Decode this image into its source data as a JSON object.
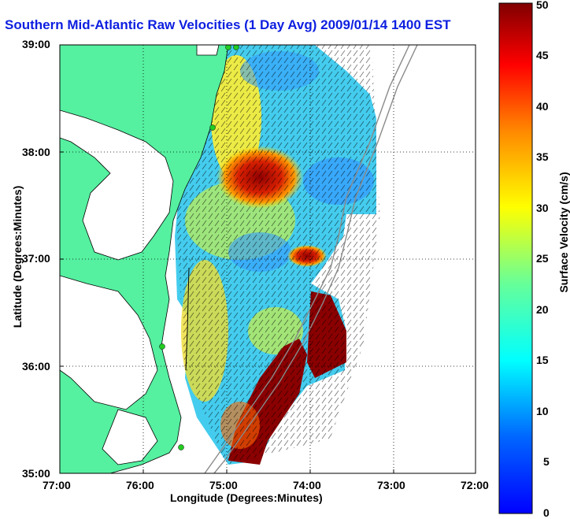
{
  "title": "Southern Mid-Atlantic Raw Velocities (1 Day Avg) 2009/01/14 1400 EST",
  "xlabel": "Longitude (Degrees:Minutes)",
  "ylabel": "Latitude (Degrees:Minutes)",
  "colorbar": {
    "label": "Surface Velocity (cm/s)",
    "ticks": [
      "50",
      "45",
      "40",
      "35",
      "30",
      "25",
      "20",
      "15",
      "10",
      "5",
      "0"
    ],
    "range": [
      0,
      50
    ],
    "colormap": "jet"
  },
  "axes": {
    "x_ticks": [
      "77:00",
      "76:00",
      "75:00",
      "74:00",
      "73:00",
      "72:00"
    ],
    "y_ticks": [
      "39:00",
      "38:00",
      "37:00",
      "36:00",
      "35:00"
    ],
    "lon_range": [
      -77,
      -72
    ],
    "lat_range": [
      35,
      39
    ],
    "grid": "dotted"
  },
  "colors": {
    "land": "#55f0a0",
    "title": "#0d1fe0",
    "coastline": "#000000",
    "bathymetry": "#8a8a8a",
    "station": "#22cc22"
  },
  "stations": [
    {
      "name": "station-north-1",
      "lon": -74.9,
      "lat": 38.98
    },
    {
      "name": "station-north-2",
      "lon": -74.97,
      "lat": 38.98
    },
    {
      "name": "station-delmarva",
      "lon": -75.15,
      "lat": 38.23
    },
    {
      "name": "station-hatteras-north",
      "lon": -75.72,
      "lat": 36.18
    },
    {
      "name": "station-hatteras",
      "lon": -75.52,
      "lat": 35.27
    }
  ]
}
